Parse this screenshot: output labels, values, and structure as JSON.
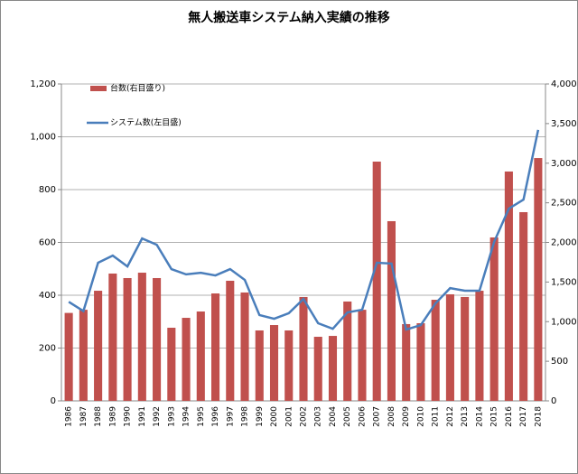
{
  "chart_data": {
    "type": "bar-line",
    "title": "無人搬送車システム納入実績の推移",
    "categories": [
      "1986",
      "1987",
      "1988",
      "1989",
      "1990",
      "1991",
      "1992",
      "1993",
      "1994",
      "1995",
      "1996",
      "1997",
      "1998",
      "1999",
      "2000",
      "2001",
      "2002",
      "2003",
      "2004",
      "2005",
      "2006",
      "2007",
      "2008",
      "2009",
      "2010",
      "2011",
      "2012",
      "2013",
      "2014",
      "2015",
      "2016",
      "2017",
      "2018"
    ],
    "series": [
      {
        "name": "台数(右目盛り)",
        "type": "bar",
        "axis": "y2",
        "color": "#c0504d",
        "values": [
          1110,
          1150,
          1390,
          1607,
          1550,
          1618,
          1550,
          923,
          1048,
          1128,
          1356,
          1516,
          1368,
          889,
          957,
          889,
          1311,
          809,
          820,
          1254,
          1150,
          3020,
          2268,
          969,
          980,
          1276,
          1345,
          1311,
          1390,
          2063,
          2895,
          2382,
          3065
        ]
      },
      {
        "name": "システム数(左目盛)",
        "type": "line",
        "axis": "y",
        "color": "#4a7ebb",
        "values": [
          375,
          340,
          523,
          550,
          509,
          615,
          591,
          499,
          479,
          485,
          475,
          499,
          458,
          325,
          311,
          332,
          386,
          294,
          273,
          335,
          345,
          523,
          520,
          270,
          287,
          369,
          427,
          417,
          417,
          602,
          728,
          762,
          1026
        ]
      }
    ],
    "ylim": [
      0,
      1200
    ],
    "yticks": [
      0,
      200,
      400,
      600,
      800,
      {
        "value": 1000,
        "label": "1,000"
      },
      {
        "value": 1200,
        "label": "1,200"
      }
    ],
    "y2lim": [
      0,
      4000
    ],
    "y2ticks": [
      0,
      500,
      {
        "value": 1000,
        "label": "1,000"
      },
      {
        "value": 1500,
        "label": "1,500"
      },
      {
        "value": 2000,
        "label": "2,000"
      },
      {
        "value": 2500,
        "label": "2,500"
      },
      {
        "value": 3000,
        "label": "3,000"
      },
      {
        "value": 3500,
        "label": "3,500"
      },
      {
        "value": 4000,
        "label": "4,000"
      }
    ],
    "grid": true
  }
}
